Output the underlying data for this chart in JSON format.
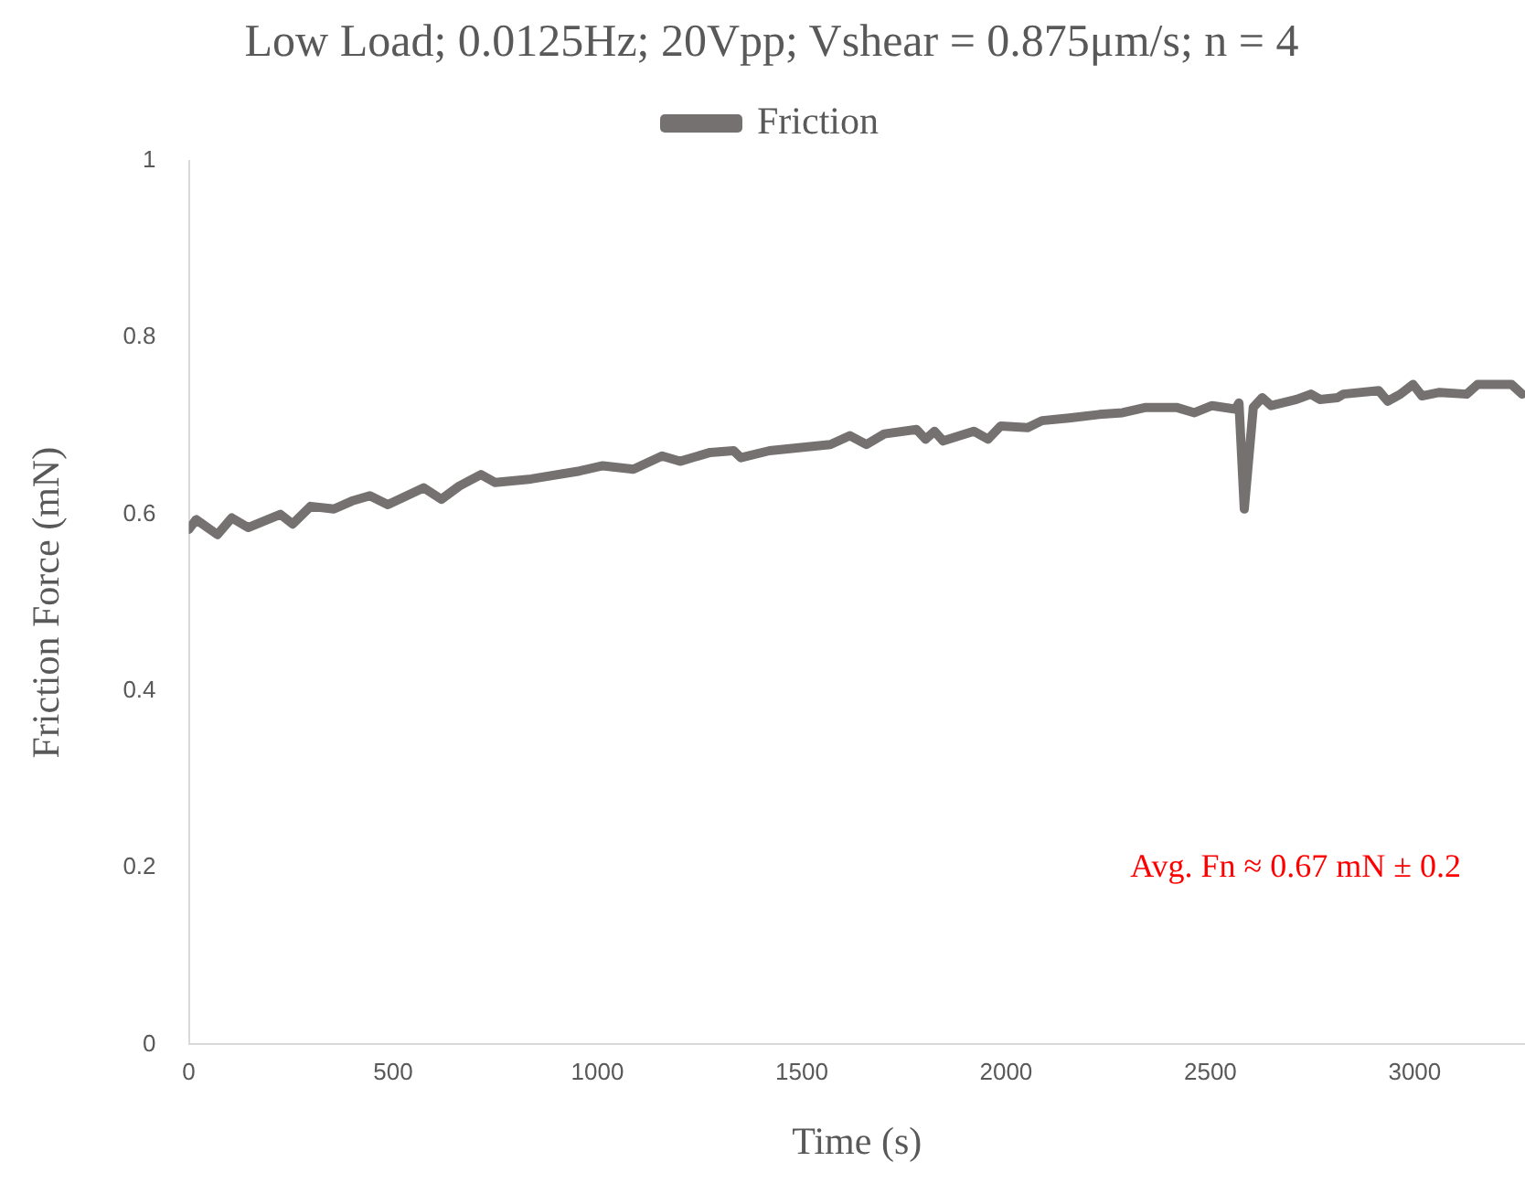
{
  "chart_data": {
    "type": "line",
    "title": "Low Load; 0.0125Hz; 20Vpp; Vshear = 0.875μm/s; n = 4",
    "xlabel": "Time (s)",
    "ylabel": "Friction Force (mN)",
    "annotations": [
      "Avg. Fn ≈ 0.67 mN ± 0.2"
    ],
    "xlim": [
      0,
      3270
    ],
    "xticks": [
      0,
      500,
      1000,
      1500,
      2000,
      2500,
      3000
    ],
    "ylim": [
      0,
      1
    ],
    "yticks": [
      0,
      0.2,
      0.4,
      0.6,
      0.8,
      1
    ],
    "grid": false,
    "legend": "top",
    "marker": "none",
    "line_style": "solid",
    "series": [
      {
        "name": "Friction",
        "color": "#767171",
        "x": [
          0,
          18,
          70,
          105,
          145,
          224,
          254,
          298,
          355,
          399,
          443,
          487,
          575,
          618,
          662,
          715,
          750,
          838,
          956,
          1013,
          1088,
          1158,
          1202,
          1276,
          1333,
          1351,
          1421,
          1570,
          1618,
          1658,
          1702,
          1781,
          1803,
          1825,
          1846,
          1921,
          1956,
          1987,
          2053,
          2088,
          2154,
          2228,
          2285,
          2342,
          2417,
          2461,
          2504,
          2561,
          2570,
          2583,
          2605,
          2627,
          2649,
          2711,
          2746,
          2768,
          2811,
          2825,
          2912,
          2934,
          2965,
          2996,
          3018,
          3061,
          3127,
          3154,
          3237,
          3263
        ],
        "values": [
          0.583,
          0.594,
          0.577,
          0.596,
          0.585,
          0.6,
          0.589,
          0.609,
          0.606,
          0.615,
          0.621,
          0.611,
          0.63,
          0.617,
          0.632,
          0.645,
          0.636,
          0.64,
          0.649,
          0.655,
          0.651,
          0.666,
          0.66,
          0.67,
          0.672,
          0.664,
          0.672,
          0.679,
          0.689,
          0.679,
          0.691,
          0.696,
          0.685,
          0.694,
          0.683,
          0.694,
          0.685,
          0.7,
          0.698,
          0.706,
          0.709,
          0.713,
          0.715,
          0.721,
          0.721,
          0.715,
          0.723,
          0.719,
          0.726,
          0.606,
          0.721,
          0.732,
          0.723,
          0.73,
          0.736,
          0.73,
          0.732,
          0.736,
          0.74,
          0.728,
          0.736,
          0.747,
          0.734,
          0.738,
          0.736,
          0.747,
          0.747,
          0.736
        ]
      }
    ]
  }
}
